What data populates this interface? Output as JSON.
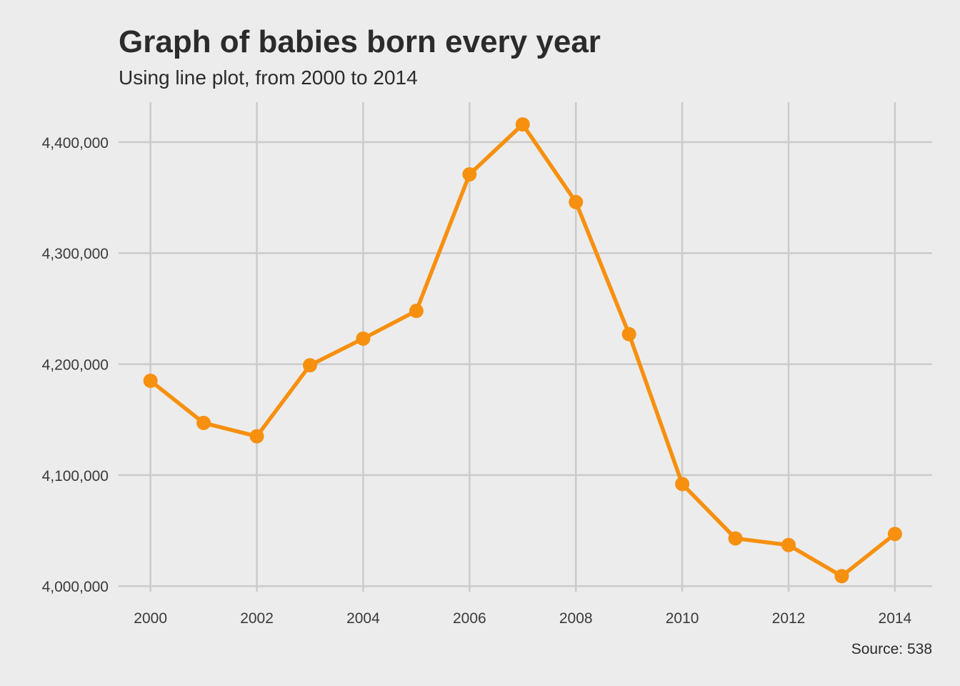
{
  "chart_data": {
    "type": "line",
    "title": "Graph of babies born every year",
    "subtitle": "Using line plot, from 2000 to 2014",
    "caption": "Source: 538",
    "xlabel": "",
    "ylabel": "",
    "x": [
      2000,
      2001,
      2002,
      2003,
      2004,
      2005,
      2006,
      2007,
      2008,
      2009,
      2010,
      2011,
      2012,
      2013,
      2014
    ],
    "series": [
      {
        "values": [
          4185000,
          4147000,
          4135000,
          4199000,
          4223000,
          4248000,
          4371000,
          4416000,
          4346000,
          4227000,
          4092000,
          4043000,
          4037000,
          4009000,
          4047000
        ]
      }
    ],
    "x_ticks": [
      2000,
      2002,
      2004,
      2006,
      2008,
      2010,
      2012,
      2014
    ],
    "x_tick_labels": [
      "2000",
      "2002",
      "2004",
      "2006",
      "2008",
      "2010",
      "2012",
      "2014"
    ],
    "y_ticks": [
      4000000,
      4100000,
      4200000,
      4300000,
      4400000
    ],
    "y_tick_labels": [
      "4,000,000",
      "4,100,000",
      "4,200,000",
      "4,300,000",
      "4,400,000"
    ],
    "xlim": [
      1999.4,
      2014.7
    ],
    "ylim": [
      3995000,
      4436000
    ],
    "grid": true,
    "legend": "none",
    "colors": {
      "line": "#f7900f",
      "grid": "#cbcbcb",
      "background": "#ececec"
    }
  }
}
